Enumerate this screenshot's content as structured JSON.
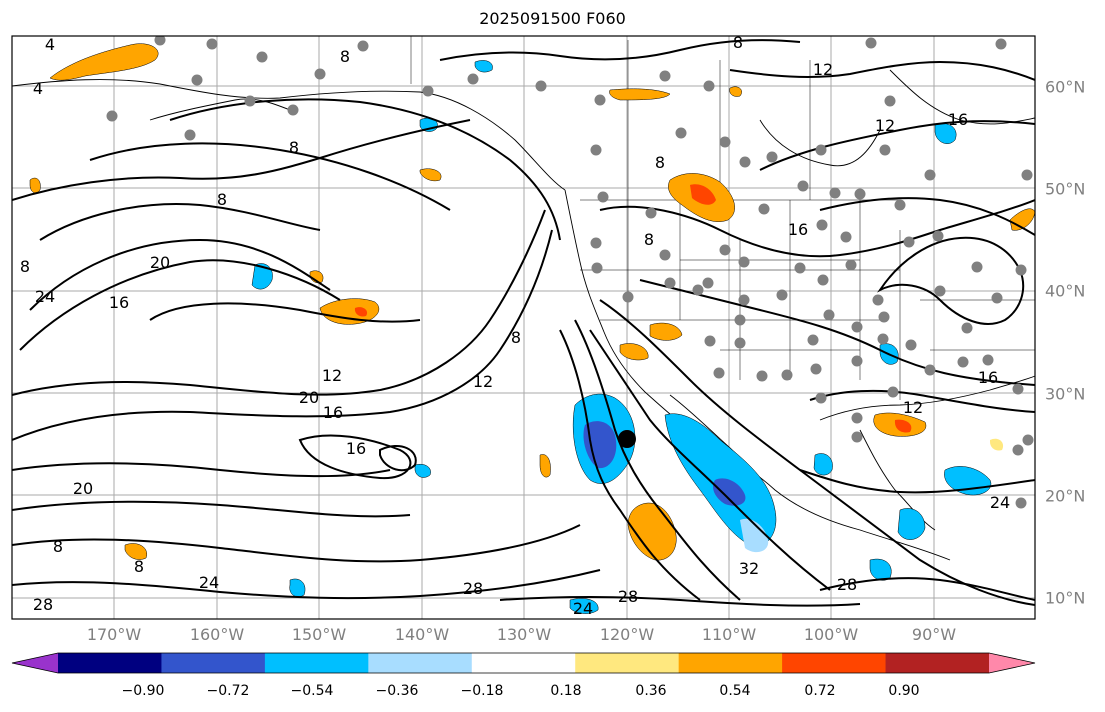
{
  "title": "2025091500 F060",
  "longitude_labels": [
    "170°W",
    "160°W",
    "150°W",
    "140°W",
    "130°W",
    "120°W",
    "110°W",
    "100°W",
    "90°W"
  ],
  "latitude_labels": [
    "60°N",
    "50°N",
    "40°N",
    "30°N",
    "20°N",
    "10°N"
  ],
  "contour_labels": [
    "4",
    "4",
    "8",
    "8",
    "8",
    "8",
    "8",
    "8",
    "8",
    "8",
    "8",
    "8",
    "12",
    "12",
    "12",
    "12",
    "12",
    "16",
    "16",
    "16",
    "16",
    "16",
    "16",
    "20",
    "20",
    "20",
    "24",
    "24",
    "24",
    "24",
    "28",
    "28",
    "28",
    "28",
    "32"
  ],
  "colorbar": {
    "ticks": [
      "−0.90",
      "−0.72",
      "−0.54",
      "−0.36",
      "−0.18",
      "0.18",
      "0.36",
      "0.54",
      "0.72",
      "0.90"
    ],
    "colors": [
      "#9933cc",
      "#000080",
      "#3355cc",
      "#00bfff",
      "#a8ddff",
      "#ffffff",
      "#ffe87f",
      "#ffa500",
      "#ff4500",
      "#b22222",
      "#ff88aa"
    ]
  },
  "fill_colors": {
    "light_blue": "#a8ddff",
    "deep_sky_blue": "#00bfff",
    "royal_blue": "#3355cc",
    "light_yellow": "#ffe87f",
    "orange": "#ffa500",
    "red_orange": "#ff4500"
  },
  "marker": "storm-center"
}
